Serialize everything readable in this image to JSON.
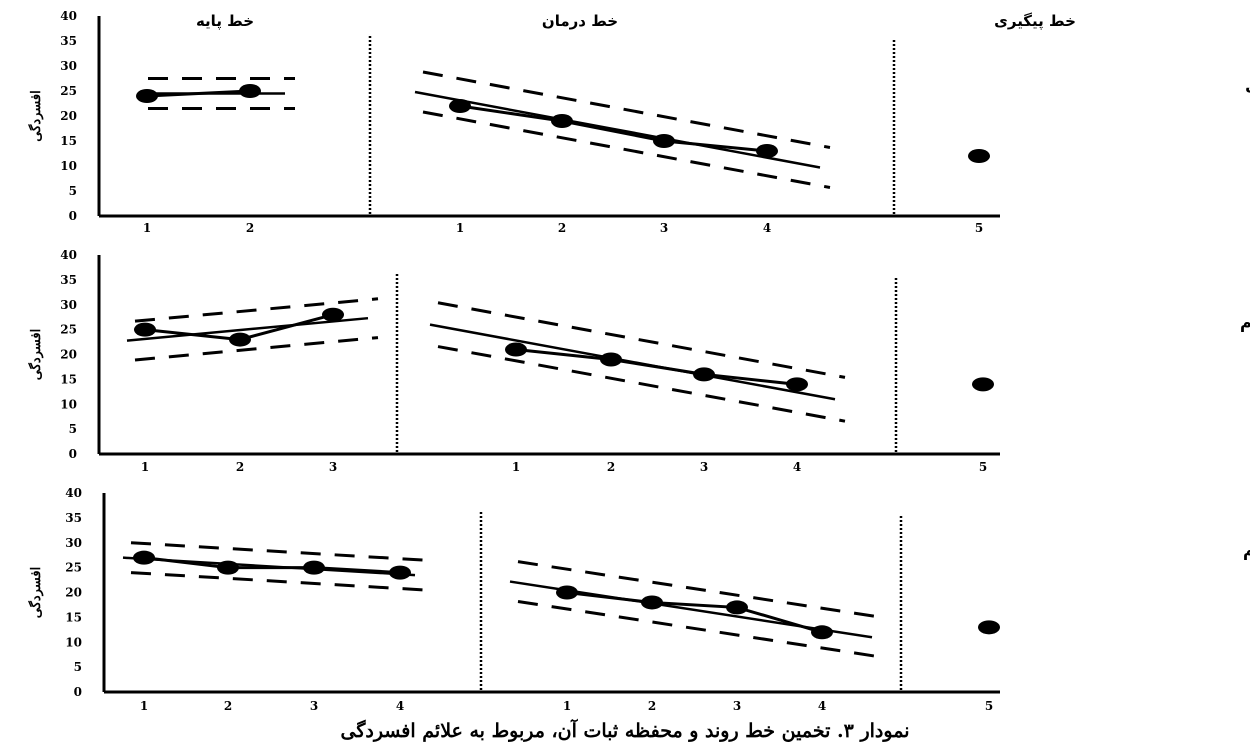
{
  "caption": "نمودار ۳. تخمین خط روند و محفظه ثبات آن، مربوط به علائم افسردگی",
  "chart_data": [
    {
      "type": "line",
      "client": "مراجع اول",
      "ylabel": "افسردگی",
      "ylim": [
        0,
        40
      ],
      "yticks": [
        "0",
        "5",
        "10",
        "15",
        "20",
        "25",
        "30",
        "35",
        "40"
      ],
      "phases": [
        {
          "label": "خط پایه",
          "x": [
            "1",
            "2"
          ],
          "values": [
            24,
            25
          ]
        },
        {
          "label": "خط درمان",
          "x": [
            "1",
            "2",
            "3",
            "4"
          ],
          "values": [
            22,
            19,
            15,
            13
          ]
        },
        {
          "label": "خط پیگیری",
          "x": [
            "5"
          ],
          "values": [
            12
          ]
        }
      ],
      "trend": {
        "baseline": {
          "start": 24.5,
          "end": 24.5,
          "envelope": 3
        },
        "treatment": {
          "start": 24.8,
          "end": 9.7,
          "envelope": 4
        }
      }
    },
    {
      "type": "line",
      "client": "مراجع دوم",
      "ylabel": "افسردگی",
      "ylim": [
        0,
        40
      ],
      "yticks": [
        "0",
        "5",
        "10",
        "15",
        "20",
        "25",
        "30",
        "35",
        "40"
      ],
      "phases": [
        {
          "label": "",
          "x": [
            "1",
            "2",
            "3"
          ],
          "values": [
            25,
            23,
            28
          ]
        },
        {
          "label": "",
          "x": [
            "1",
            "2",
            "3",
            "4"
          ],
          "values": [
            21,
            19,
            16,
            14
          ]
        },
        {
          "label": "",
          "x": [
            "5"
          ],
          "values": [
            14
          ]
        }
      ],
      "trend": {
        "baseline": {
          "start": 22.8,
          "end": 27.3,
          "envelope": 3.9
        },
        "treatment": {
          "start": 26,
          "end": 11,
          "envelope": 4.4
        }
      }
    },
    {
      "type": "line",
      "client": "مراجع سوم",
      "ylabel": "افسردگی",
      "ylim": [
        0,
        40
      ],
      "yticks": [
        "0",
        "5",
        "10",
        "15",
        "20",
        "25",
        "30",
        "35",
        "40"
      ],
      "phases": [
        {
          "label": "",
          "x": [
            "1",
            "2",
            "3",
            "4"
          ],
          "values": [
            27,
            25,
            25,
            24
          ]
        },
        {
          "label": "",
          "x": [
            "1",
            "2",
            "3",
            "4"
          ],
          "values": [
            20,
            18,
            17,
            12
          ]
        },
        {
          "label": "",
          "x": [
            "5"
          ],
          "values": [
            13
          ]
        }
      ],
      "trend": {
        "baseline": {
          "start": 27,
          "end": 23.5,
          "envelope": 3
        },
        "treatment": {
          "start": 22.2,
          "end": 11,
          "envelope": 4
        }
      }
    }
  ]
}
